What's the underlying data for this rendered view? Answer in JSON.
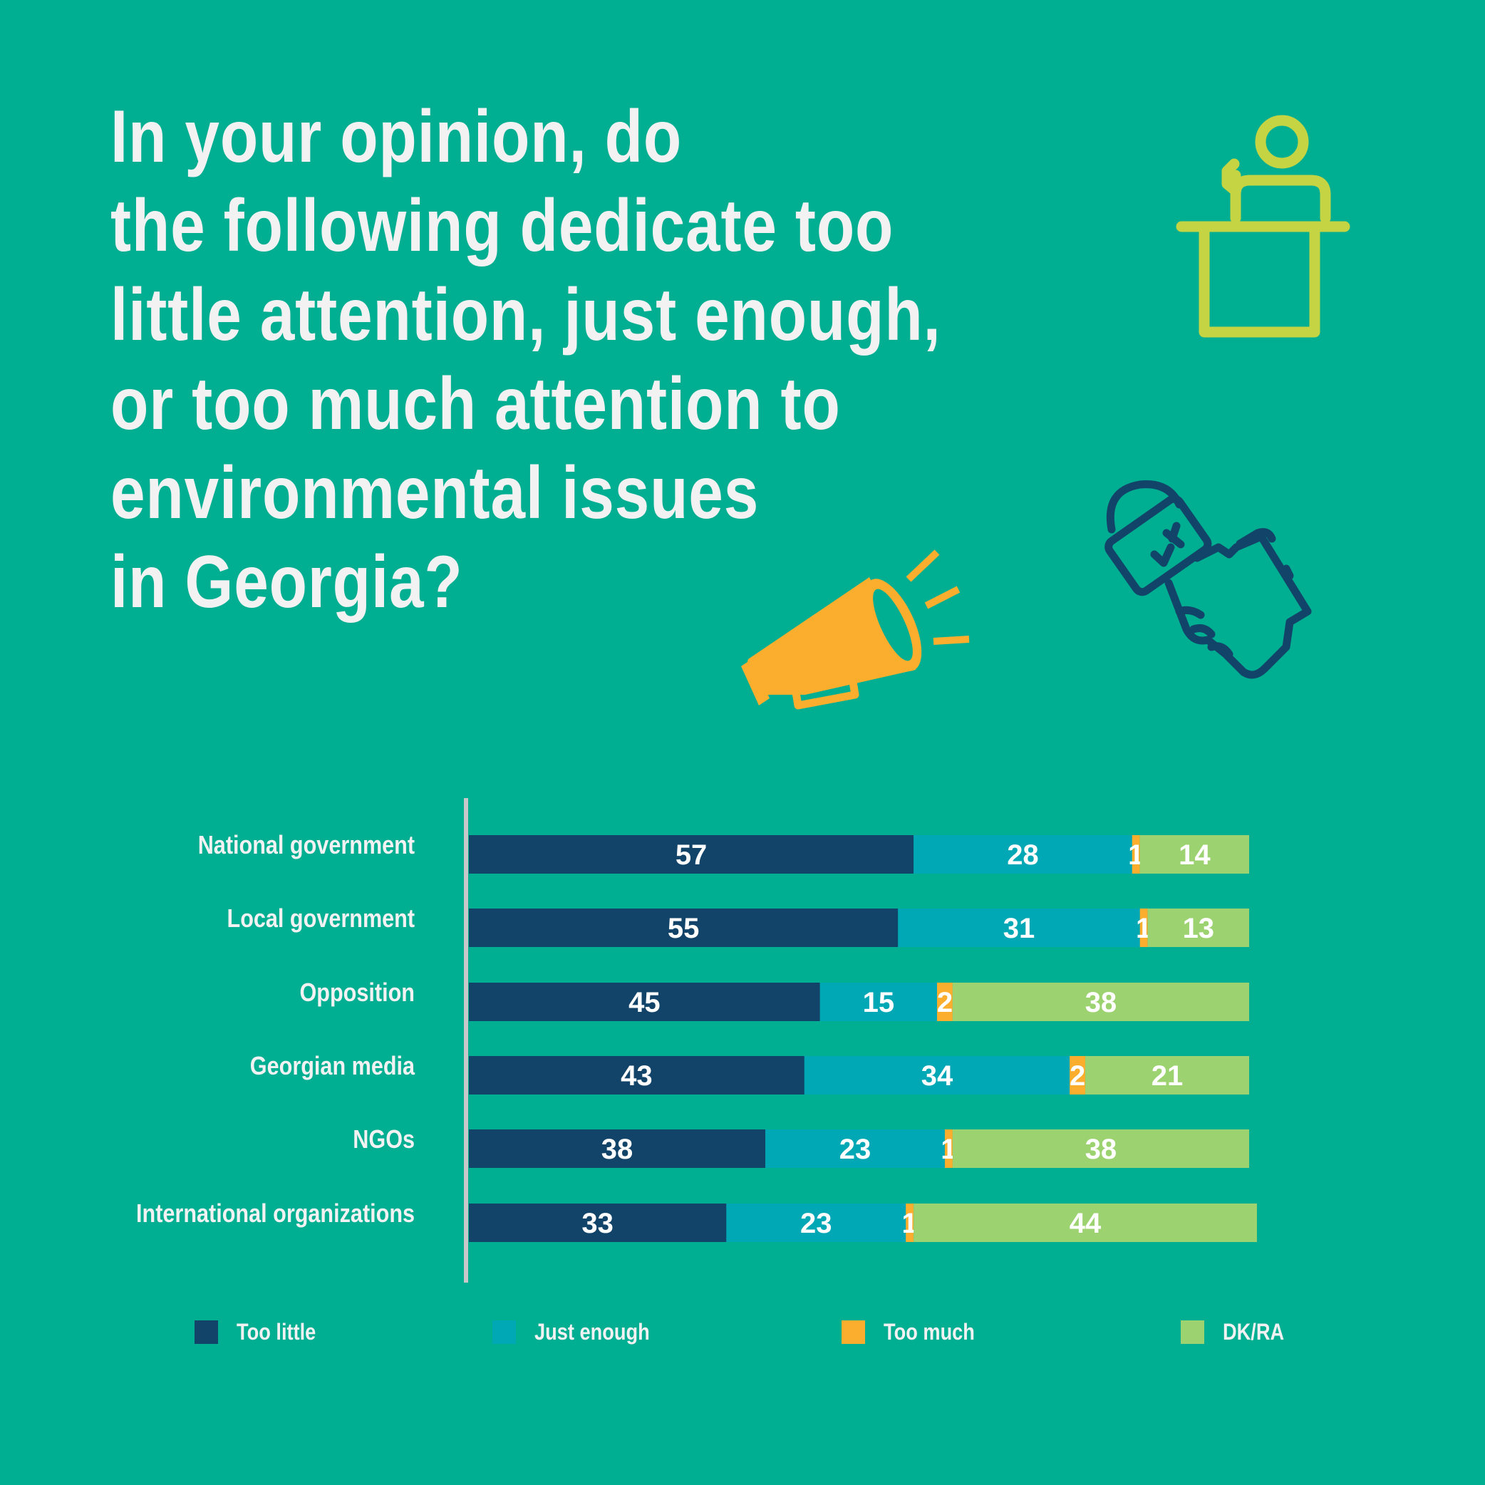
{
  "title_lines": [
    "In your opinion, do",
    "the following dedicate too",
    "little attention, just enough,",
    "or too much attention to",
    "environmental issues",
    "in Georgia?"
  ],
  "icons": [
    "podium-speaker-icon",
    "megaphone-icon",
    "microphone-hand-icon"
  ],
  "colors": {
    "background": "#00AE92",
    "too_little": "#124469",
    "just_enough": "#00A7B5",
    "too_much": "#FBAE2D",
    "dk_ra": "#9CD26F",
    "podium_icon": "#C5D443",
    "megaphone_icon": "#FBAE2D",
    "mic_icon": "#124469"
  },
  "chart_data": {
    "type": "bar",
    "orientation": "horizontal",
    "stacked": true,
    "categories": [
      "National government",
      "Local government",
      "Opposition",
      "Georgian media",
      "NGOs",
      "International organizations"
    ],
    "series": [
      {
        "name": "Too little",
        "values": [
          57,
          55,
          45,
          43,
          38,
          33
        ]
      },
      {
        "name": "Just enough",
        "values": [
          28,
          31,
          15,
          34,
          23,
          23
        ]
      },
      {
        "name": "Too much",
        "values": [
          1,
          1,
          2,
          2,
          1,
          1
        ]
      },
      {
        "name": "DK/RA",
        "values": [
          14,
          13,
          38,
          21,
          38,
          44
        ]
      }
    ],
    "xlim": [
      0,
      100
    ],
    "grid": false,
    "legend_position": "bottom"
  }
}
